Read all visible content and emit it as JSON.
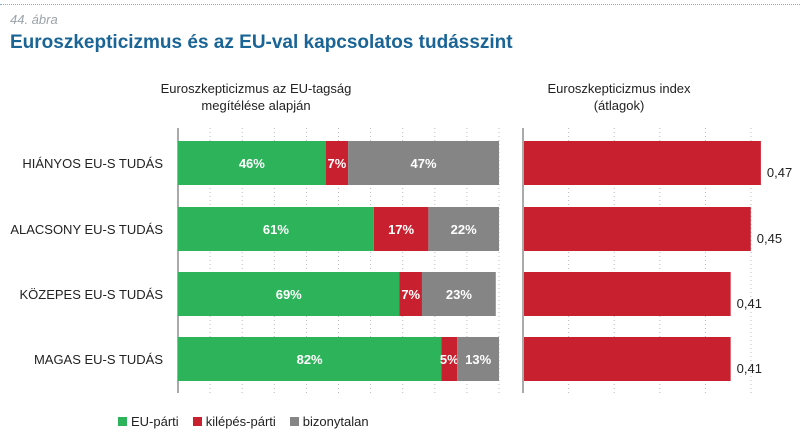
{
  "figure": {
    "number": "44. ábra",
    "title": "Euroszkepticizmus és az EU-val kapcsolatos tudásszint"
  },
  "colors": {
    "eu_parti": "#2db45a",
    "kilepes_parti": "#c8202f",
    "bizonytalan": "#858585",
    "index": "#c8202f"
  },
  "legend": [
    {
      "label": "EU-párti",
      "color": "#2db45a"
    },
    {
      "label": "kilépés-párti",
      "color": "#c8202f"
    },
    {
      "label": "bizonytalan",
      "color": "#858585"
    }
  ],
  "chart_data": [
    {
      "type": "bar",
      "stacked": true,
      "orientation": "horizontal",
      "title": "Euroszkepticizmus az EU-tagság megítélése alapján",
      "title_lines": [
        "Euroszkepticizmus az EU-tagság",
        "megítélése alapján"
      ],
      "categories": [
        "HIÁNYOS EU-S TUDÁS",
        "ALACSONY EU-S TUDÁS",
        "KÖZEPES EU-S TUDÁS",
        "MAGAS EU-S TUDÁS"
      ],
      "series": [
        {
          "name": "EU-párti",
          "values": [
            46,
            61,
            69,
            82
          ],
          "labels": [
            "46%",
            "61%",
            "69%",
            "82%"
          ]
        },
        {
          "name": "kilépés-párti",
          "values": [
            7,
            17,
            7,
            5
          ],
          "labels": [
            "7%",
            "17%",
            "7%",
            "5%"
          ]
        },
        {
          "name": "bizonytalan",
          "values": [
            47,
            22,
            23,
            13
          ],
          "labels": [
            "47%",
            "22%",
            "23%",
            "13%"
          ]
        }
      ],
      "xlim": [
        0,
        100
      ],
      "legend_position": "bottom"
    },
    {
      "type": "bar",
      "orientation": "horizontal",
      "title": "Euroszkepticizmus index (átlagok)",
      "title_lines": [
        "Euroszkepticizmus index",
        "(átlagok)"
      ],
      "categories": [
        "HIÁNYOS EU-S TUDÁS",
        "ALACSONY EU-S TUDÁS",
        "KÖZEPES EU-S TUDÁS",
        "MAGAS EU-S TUDÁS"
      ],
      "values": [
        0.47,
        0.45,
        0.41,
        0.41
      ],
      "labels": [
        "0,47",
        "0,45",
        "0,41",
        "0,41"
      ]
    }
  ]
}
